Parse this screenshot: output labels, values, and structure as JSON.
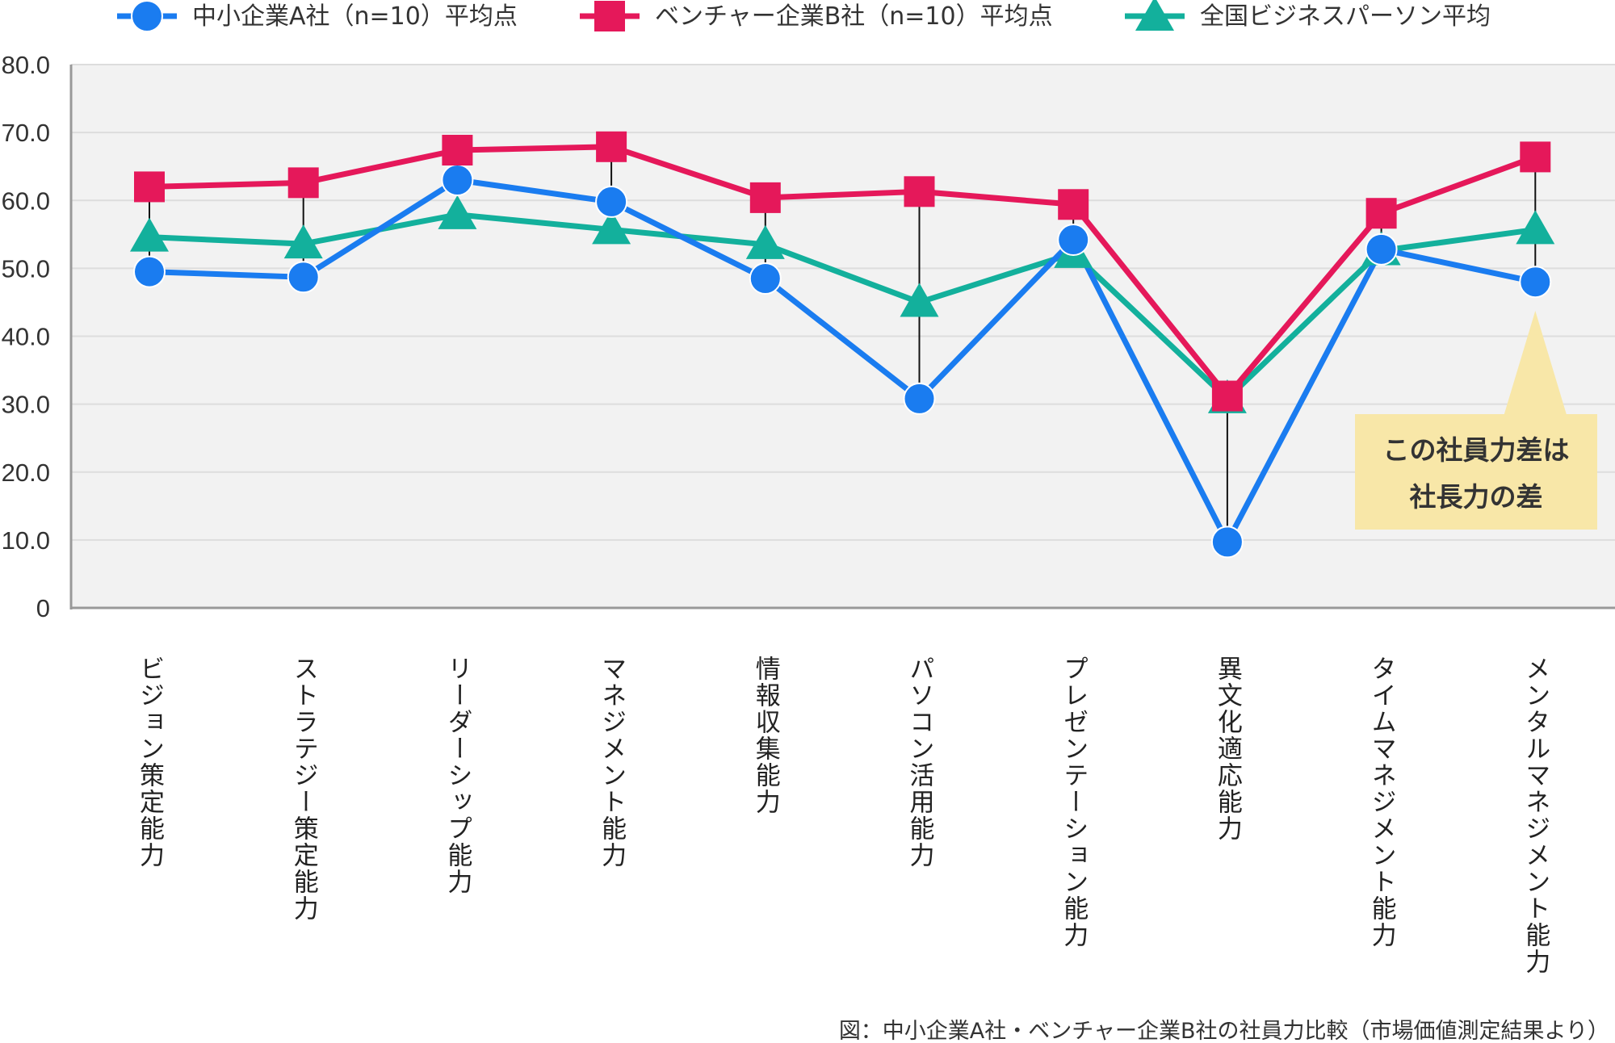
{
  "chart_data": {
    "type": "line",
    "categories": [
      "ビジョン策定能力",
      "ストラテジー策定能力",
      "リーダーシップ能力",
      "マネジメント能力",
      "情報収集能力",
      "パソコン活用能力",
      "プレゼンテーション能力",
      "異文化適応能力",
      "タイムマネジメント能力",
      "メンタルマネジメント能力"
    ],
    "series": [
      {
        "name": "中小企業A社（n=10）平均点",
        "color": "#1a7cf0",
        "marker": "circle",
        "values": [
          49.5,
          48.7,
          63.0,
          59.8,
          48.5,
          30.8,
          54.2,
          9.7,
          52.8,
          48.0
        ]
      },
      {
        "name": "ベンチャー企業B社（n=10）平均点",
        "color": "#e5185a",
        "marker": "square",
        "values": [
          62.0,
          62.6,
          67.4,
          67.9,
          60.4,
          61.3,
          59.4,
          31.2,
          58.1,
          66.4
        ]
      },
      {
        "name": "全国ビジネスパーソン平均",
        "color": "#13b09c",
        "marker": "triangle",
        "values": [
          54.6,
          53.6,
          57.9,
          55.7,
          53.5,
          45.0,
          52.2,
          30.8,
          52.6,
          55.7
        ]
      }
    ],
    "gap_lines": [
      {
        "category_index": 0,
        "from": 49.5,
        "to": 62.0
      },
      {
        "category_index": 1,
        "from": 48.7,
        "to": 62.6
      },
      {
        "category_index": 2,
        "from": 63.0,
        "to": 67.4
      },
      {
        "category_index": 3,
        "from": 59.8,
        "to": 67.9
      },
      {
        "category_index": 4,
        "from": 48.5,
        "to": 60.4
      },
      {
        "category_index": 5,
        "from": 30.8,
        "to": 61.3
      },
      {
        "category_index": 6,
        "from": 54.2,
        "to": 59.4
      },
      {
        "category_index": 7,
        "from": 9.7,
        "to": 31.2
      },
      {
        "category_index": 8,
        "from": 52.8,
        "to": 58.1
      },
      {
        "category_index": 9,
        "from": 48.0,
        "to": 66.4
      }
    ],
    "yticks": [
      "0",
      "10.0",
      "20.0",
      "30.0",
      "40.0",
      "50.0",
      "60.0",
      "70.0",
      "80.0"
    ],
    "ylim": [
      0,
      80
    ],
    "grid": true,
    "legend_position": "top",
    "callout": {
      "lines": [
        "この社員力差は",
        "社長力の差"
      ],
      "color": "#f8e7a8",
      "category_index": 9
    },
    "caption": "図：中小企業A社・ベンチャー企業B社の社員力比較（市場価値測定結果より）",
    "plot_background": "#f2f2f2",
    "grid_color": "#dddddd"
  }
}
